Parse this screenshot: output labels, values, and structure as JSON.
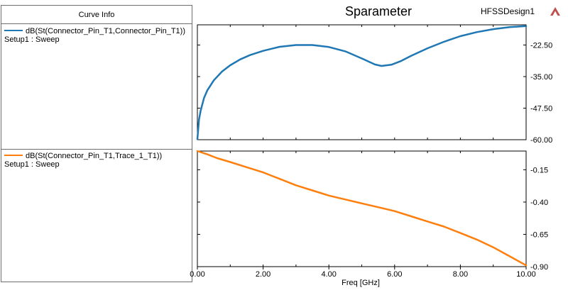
{
  "legend": {
    "header": "Curve Info",
    "entries": [
      {
        "label": "dB(St(Connector_Pin_T1,Connector_Pin_T1))",
        "setup": "Setup1 : Sweep",
        "color": "#1f77b4"
      },
      {
        "label": "dB(St(Connector_Pin_T1,Trace_1_T1))",
        "setup": "Setup1 : Sweep",
        "color": "#ff7f0e"
      }
    ]
  },
  "design_name": "HFSSDesign1",
  "logo_icon": "ansys-logo-icon",
  "chart_data": [
    {
      "type": "line",
      "title": "Sparameter",
      "xlabel": "",
      "ylabel": "",
      "xlim": [
        0,
        10
      ],
      "ylim": [
        -60,
        -14.5
      ],
      "ytick_labels": [
        "-22.50",
        "-35.00",
        "-47.50",
        "-60.00"
      ],
      "ytick_values": [
        -22.5,
        -35.0,
        -47.5,
        -60.0
      ],
      "grid": false,
      "series": [
        {
          "name": "dB(St(Connector_Pin_T1,Connector_Pin_T1))",
          "color": "#1f77b4",
          "x": [
            0.0,
            0.05,
            0.1,
            0.2,
            0.3,
            0.5,
            0.75,
            1.0,
            1.3,
            1.6,
            2.0,
            2.5,
            3.0,
            3.5,
            4.0,
            4.5,
            5.0,
            5.4,
            5.6,
            5.9,
            6.2,
            6.5,
            7.0,
            7.5,
            8.0,
            8.5,
            9.0,
            9.5,
            10.0
          ],
          "y": [
            -59.8,
            -52.0,
            -48.5,
            -43.5,
            -40.5,
            -36.5,
            -33.0,
            -30.5,
            -28.2,
            -26.5,
            -24.8,
            -23.2,
            -22.5,
            -22.5,
            -23.3,
            -25.0,
            -27.8,
            -30.2,
            -30.8,
            -30.3,
            -28.8,
            -26.8,
            -23.8,
            -21.2,
            -19.0,
            -17.4,
            -16.2,
            -15.4,
            -15.0
          ]
        }
      ]
    },
    {
      "type": "line",
      "xlabel": "Freq [GHz]",
      "ylabel": "",
      "xlim": [
        0,
        10
      ],
      "ylim": [
        -0.9,
        -0.005
      ],
      "xtick_labels": [
        "0.00",
        "2.00",
        "4.00",
        "6.00",
        "8.00",
        "10.00"
      ],
      "xtick_values": [
        0,
        2,
        4,
        6,
        8,
        10
      ],
      "ytick_labels": [
        "-0.15",
        "-0.40",
        "-0.65",
        "-0.90"
      ],
      "ytick_values": [
        -0.15,
        -0.4,
        -0.65,
        -0.9
      ],
      "grid": false,
      "series": [
        {
          "name": "dB(St(Connector_Pin_T1,Trace_1_T1))",
          "color": "#ff7f0e",
          "x": [
            0.0,
            0.3,
            0.6,
            1.0,
            1.5,
            2.0,
            2.5,
            3.0,
            3.5,
            4.0,
            4.5,
            5.0,
            5.5,
            6.0,
            6.5,
            7.0,
            7.5,
            8.0,
            8.5,
            9.0,
            9.5,
            10.0
          ],
          "y": [
            -0.005,
            -0.03,
            -0.06,
            -0.09,
            -0.13,
            -0.17,
            -0.22,
            -0.27,
            -0.31,
            -0.35,
            -0.38,
            -0.41,
            -0.44,
            -0.47,
            -0.51,
            -0.55,
            -0.59,
            -0.64,
            -0.69,
            -0.75,
            -0.82,
            -0.89
          ]
        }
      ]
    }
  ]
}
